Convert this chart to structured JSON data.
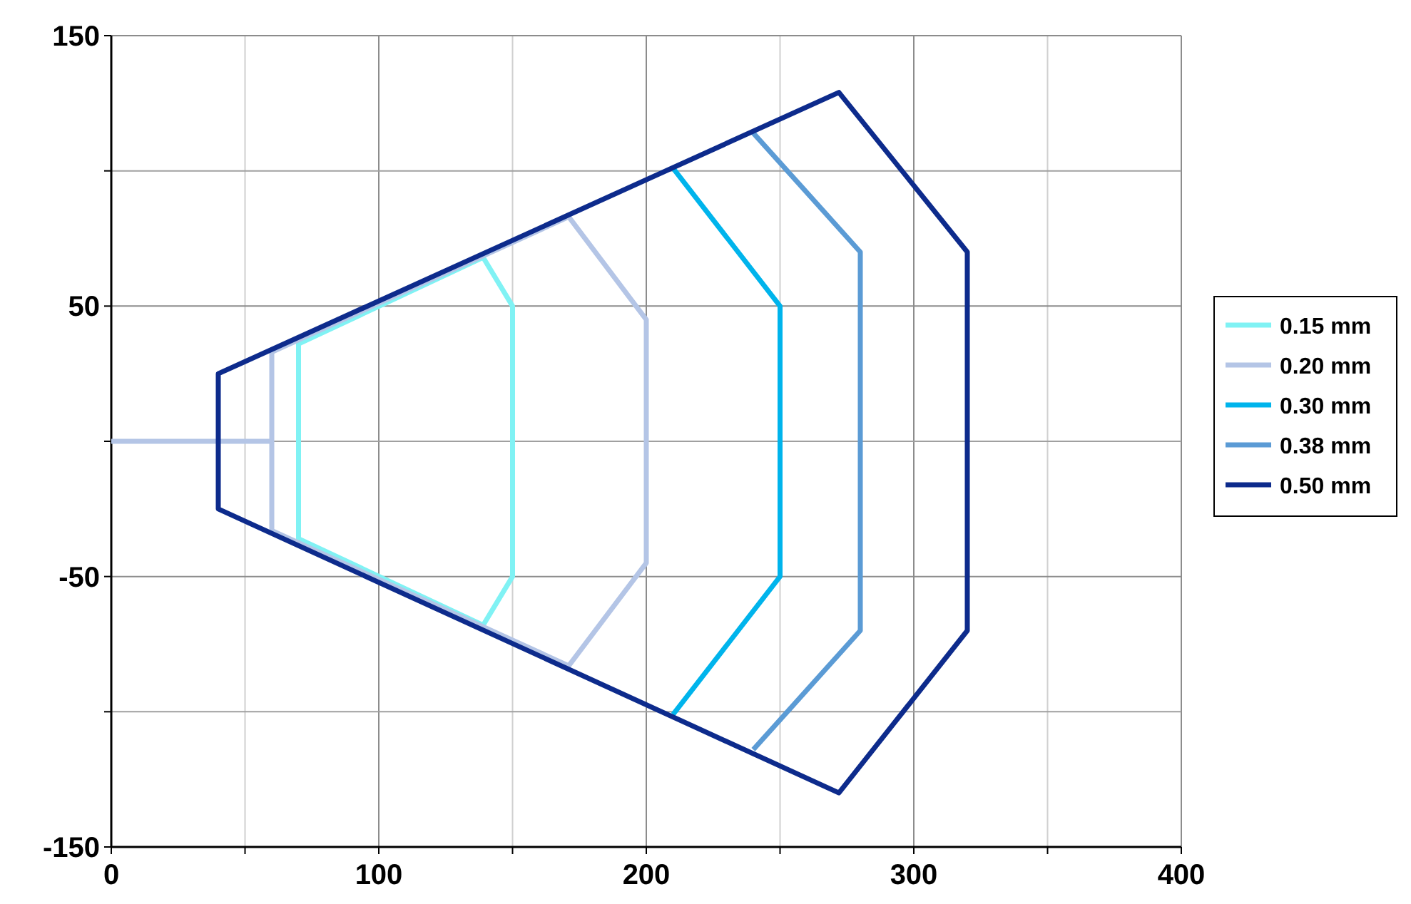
{
  "chart_data": {
    "type": "line",
    "xlim": [
      0,
      400
    ],
    "ylim": [
      -150,
      150
    ],
    "xticks": [
      0,
      {
        "value": 50,
        "label": null
      },
      100,
      {
        "value": 150,
        "label": null
      },
      200,
      {
        "value": 250,
        "label": null
      },
      300,
      {
        "value": 350,
        "label": null
      },
      400
    ],
    "yticks": [
      -150,
      {
        "value": -100,
        "label": null
      },
      -50,
      {
        "value": 0,
        "label": null
      },
      50,
      {
        "value": 100,
        "label": null
      },
      150
    ],
    "grid": true,
    "legend": "right",
    "marker": "none",
    "line_style": "solid",
    "series": [
      {
        "name": "0.15 mm",
        "color": "#80f2f4",
        "x": [
          70,
          70,
          139,
          150,
          150,
          139,
          70,
          70
        ],
        "values": [
          -36,
          36,
          68,
          50,
          -50,
          -68,
          -36,
          36
        ]
      },
      {
        "name": "0.20 mm",
        "color": "#b4c5e6",
        "x": [
          0,
          60,
          60,
          171,
          200,
          200,
          171,
          60,
          60
        ],
        "values": [
          0,
          0,
          33,
          83,
          45,
          -45,
          -83,
          -33,
          0
        ]
      },
      {
        "name": "0.30 mm",
        "color": "#00b4ec",
        "x": [
          210,
          250,
          250,
          210
        ],
        "values": [
          101,
          50,
          -50,
          -101
        ]
      },
      {
        "name": "0.38 mm",
        "color": "#5b9bd5",
        "x": [
          240,
          280,
          280,
          240
        ],
        "values": [
          114,
          70,
          -70,
          -114
        ]
      },
      {
        "name": "0.50 mm",
        "color": "#0d2b8c",
        "x": [
          40,
          40,
          272,
          320,
          320,
          272,
          40,
          40
        ],
        "values": [
          -25,
          25,
          129,
          70,
          -70,
          -130,
          -25,
          25
        ]
      }
    ]
  }
}
